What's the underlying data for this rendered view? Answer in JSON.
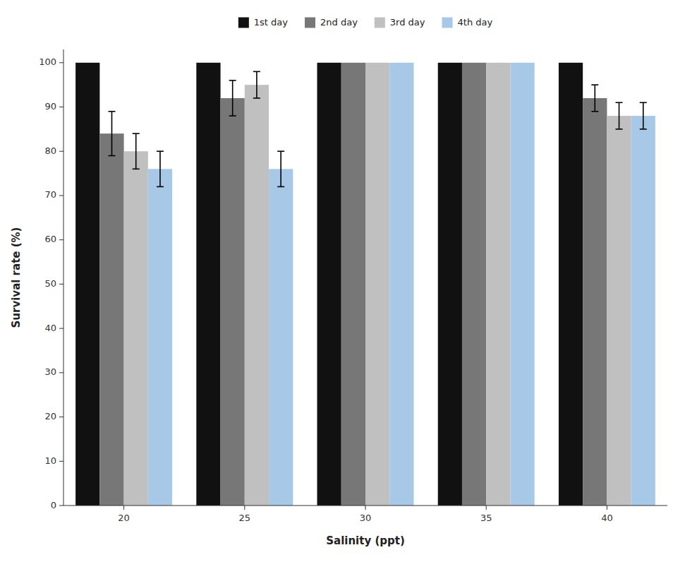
{
  "chart_data": {
    "type": "bar",
    "xlabel": "Salinity (ppt)",
    "ylabel": "Survival rate (%)",
    "categories": [
      "20",
      "25",
      "30",
      "35",
      "40"
    ],
    "series": [
      {
        "name": "1st day",
        "color": "#111111",
        "values": [
          100,
          100,
          100,
          100,
          100
        ],
        "errors": [
          0,
          0,
          0,
          0,
          0
        ]
      },
      {
        "name": "2nd day",
        "color": "#777777",
        "values": [
          84,
          92,
          100,
          100,
          92
        ],
        "errors": [
          5,
          4,
          0,
          0,
          3
        ]
      },
      {
        "name": "3rd day",
        "color": "#c0c0c0",
        "values": [
          80,
          95,
          100,
          100,
          88
        ],
        "errors": [
          4,
          3,
          0,
          0,
          3
        ]
      },
      {
        "name": "4th day",
        "color": "#a8c8e8",
        "values": [
          76,
          76,
          100,
          100,
          88
        ],
        "errors": [
          4,
          4,
          0,
          0,
          3
        ]
      }
    ],
    "ylim": [
      0,
      103
    ],
    "yticks": [
      0,
      10,
      20,
      30,
      40,
      50,
      60,
      70,
      80,
      90,
      100
    ],
    "grid": false,
    "legend": "top"
  }
}
